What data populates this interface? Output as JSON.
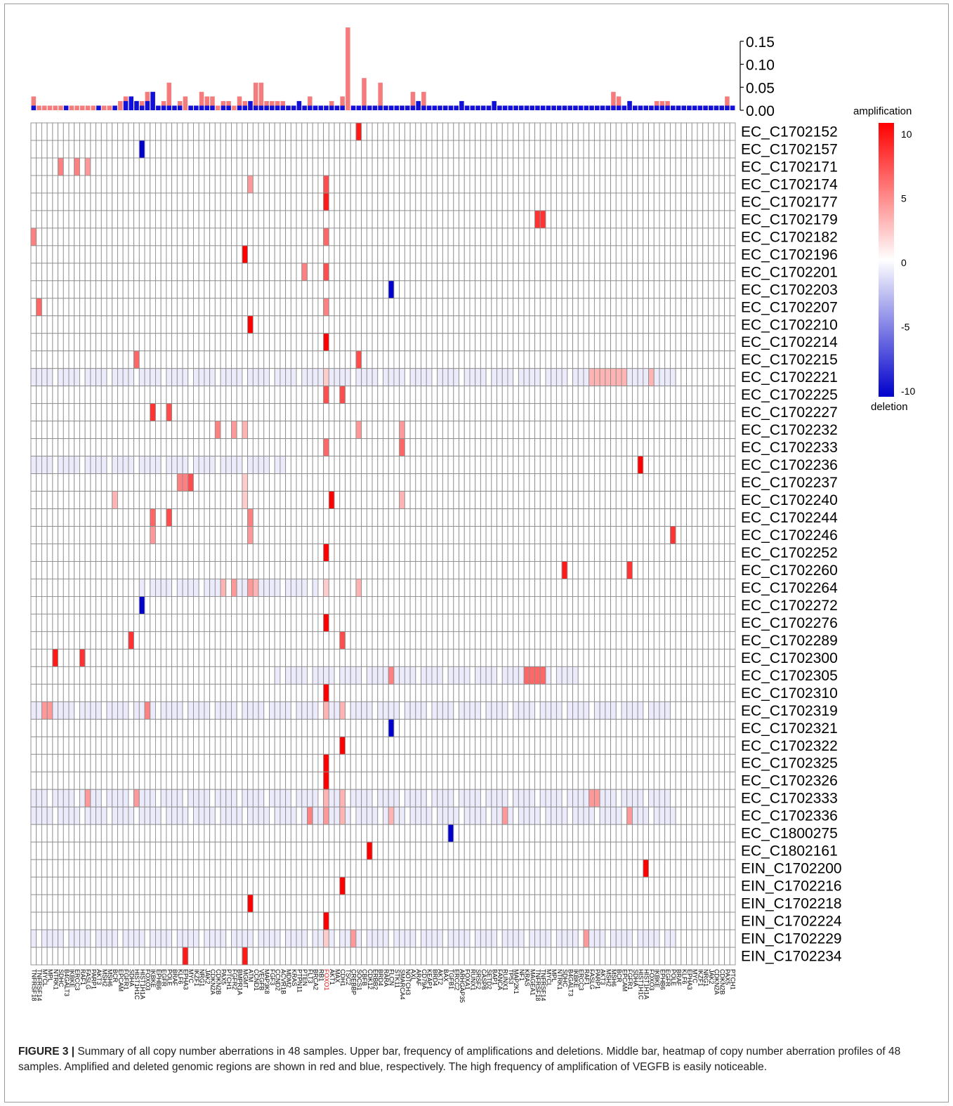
{
  "chart_data": {
    "type": "heatmap",
    "genes": [
      "TNFRSF18",
      "TNFRSF14",
      "MYCL",
      "MPL",
      "NTRK1",
      "SDHC",
      "B4GALT3",
      "IKBKE",
      "ERCC3",
      "RAF1",
      "FASLG",
      "PARP1",
      "AKT3",
      "MSH2",
      "MSH6",
      "BCR",
      "EPCAM",
      "FGFR1",
      "SDHA",
      "HIST1H1C",
      "HIST1H1A",
      "FOXO3",
      "IKBKE",
      "EPHB6",
      "EGFR",
      "POLE",
      "BRAF",
      "KLF6",
      "EPHA3",
      "MYC",
      "IKZF1",
      "NRG1",
      "JAK2",
      "CDKN2A",
      "CDKN2B",
      "PAX5",
      "PTCH1",
      "FGFR2",
      "BMPR1A",
      "MGMT",
      "ATM",
      "CCND1",
      "VEGFB",
      "MAP3K8",
      "FGF3",
      "CCND2",
      "ACVR1B",
      "MDM2",
      "KRAS",
      "PTPN11",
      "PTEN",
      "FLT3",
      "BRCA2",
      "RB1",
      "FOXO1",
      "AKT1",
      "MAX",
      "CDH1",
      "TSC2",
      "CREBBP",
      "SOCS1",
      "CBFB",
      "CDK12",
      "ERBB2",
      "BRD4",
      "RARA",
      "FLCN",
      "STK11",
      "SMARCA4",
      "NOTCH3",
      "AXL",
      "ARAF",
      "CD79A",
      "KEAP1",
      "BRD4",
      "AKT2",
      "BAX",
      "TGFB1",
      "ERCC2",
      "ARHGAP35",
      "FOXA1",
      "RUNX1",
      "SRSF2",
      "CASP8",
      "SETD2",
      "BAP1",
      "FANCA",
      "RUNX1",
      "TP53",
      "MAP2K1",
      "NF1",
      "KRAS",
      "MAGEA1"
    ],
    "xtick_labels": [
      "TNFRSF18",
      "TNFRSF14",
      "MYCL",
      "MPL",
      "NTRK1",
      "SDHC",
      "B4GALT3",
      "IKBKE",
      "ERCC3",
      "RAF1",
      "FASLG",
      "PARP1",
      "AKT3",
      "MSH2",
      "MSH6",
      "BCR",
      "EPCAM",
      "FGFR1",
      "SDHA",
      "HIST1H1C",
      "HIST1H1A",
      "FOXO3",
      "IKBKE",
      "EPHB6",
      "EGFR",
      "POLE",
      "BRAF",
      "KLF6",
      "EPHA3",
      "MYC",
      "IKZF1",
      "NRG1",
      "JAK2",
      "CDKN2A",
      "CDKN2B",
      "PAX5",
      "PTCH1",
      "FGFR2",
      "BMPR1A",
      "MGMT",
      "ATM",
      "CCND1",
      "VEGFB",
      "MAP3K8",
      "FGF3",
      "CCND2",
      "ACVR1B",
      "MDM2",
      "KRAS",
      "PTPN11",
      "PTEN",
      "FLT3",
      "BRCA2",
      "RB1",
      "FOXO1",
      "AKT1",
      "MAX",
      "CDH1",
      "TSC2",
      "CREBBP",
      "SOCS1",
      "CBFB",
      "CDK12",
      "ERBB2",
      "BRD4",
      "RARA",
      "FLCN",
      "STK11",
      "SMARCA4",
      "NOTCH3",
      "AXL",
      "ARAF",
      "CD79A",
      "KEAP1",
      "BRD4",
      "AKT2",
      "BAX",
      "TGFB1",
      "ERCC2",
      "ARHGAP35",
      "FOXA1",
      "RUNX1",
      "SRSF2",
      "CASP8",
      "SETD2",
      "BAP1",
      "FANCA",
      "RUNX1",
      "TP53",
      "MAP2K1",
      "NF1",
      "KRAS",
      "MAGEA1"
    ],
    "highlight_gene": "VEGFB",
    "highlight_index": 54,
    "samples": [
      "EC_C1702152",
      "EC_C1702157",
      "EC_C1702171",
      "EC_C1702174",
      "EC_C1702177",
      "EC_C1702179",
      "EC_C1702182",
      "EC_C1702196",
      "EC_C1702201",
      "EC_C1702203",
      "EC_C1702207",
      "EC_C1702210",
      "EC_C1702214",
      "EC_C1702215",
      "EC_C1702221",
      "EC_C1702225",
      "EC_C1702227",
      "EC_C1702232",
      "EC_C1702233",
      "EC_C1702236",
      "EC_C1702237",
      "EC_C1702240",
      "EC_C1702244",
      "EC_C1702246",
      "EC_C1702252",
      "EC_C1702260",
      "EC_C1702264",
      "EC_C1702272",
      "EC_C1702276",
      "EC_C1702289",
      "EC_C1702300",
      "EC_C1702305",
      "EC_C1702310",
      "EC_C1702319",
      "EC_C1702321",
      "EC_C1702322",
      "EC_C1702325",
      "EC_C1702326",
      "EC_C1702333",
      "EC_C1702336",
      "EC_C1800275",
      "EC_C1802161",
      "EIN_C1702200",
      "EIN_C1702216",
      "EIN_C1702218",
      "EIN_C1702224",
      "EIN_C1702229",
      "EIN_C1702234"
    ],
    "cells": [
      [
        0,
        60,
        9
      ],
      [
        1,
        20,
        -10
      ],
      [
        2,
        5,
        5
      ],
      [
        2,
        8,
        5
      ],
      [
        2,
        10,
        4
      ],
      [
        3,
        40,
        4
      ],
      [
        3,
        54,
        7
      ],
      [
        4,
        54,
        9
      ],
      [
        5,
        93,
        8
      ],
      [
        5,
        94,
        8
      ],
      [
        6,
        0,
        5
      ],
      [
        6,
        54,
        6
      ],
      [
        7,
        39,
        10
      ],
      [
        8,
        50,
        5
      ],
      [
        8,
        54,
        7
      ],
      [
        9,
        66,
        -10
      ],
      [
        10,
        1,
        6
      ],
      [
        10,
        54,
        5
      ],
      [
        11,
        40,
        10
      ],
      [
        12,
        54,
        10
      ],
      [
        13,
        19,
        6
      ],
      [
        13,
        60,
        7
      ],
      [
        14,
        54,
        2
      ],
      [
        14,
        103,
        3
      ],
      [
        14,
        104,
        3
      ],
      [
        14,
        105,
        3
      ],
      [
        14,
        106,
        3
      ],
      [
        14,
        107,
        3
      ],
      [
        14,
        108,
        3
      ],
      [
        14,
        109,
        3
      ],
      [
        14,
        114,
        3
      ],
      [
        15,
        54,
        7
      ],
      [
        15,
        57,
        7
      ],
      [
        16,
        22,
        8
      ],
      [
        16,
        25,
        7
      ],
      [
        17,
        34,
        5
      ],
      [
        17,
        37,
        4
      ],
      [
        17,
        39,
        3
      ],
      [
        17,
        60,
        4
      ],
      [
        17,
        68,
        4
      ],
      [
        18,
        54,
        6
      ],
      [
        18,
        68,
        6
      ],
      [
        19,
        112,
        10
      ],
      [
        20,
        27,
        5
      ],
      [
        20,
        28,
        5
      ],
      [
        20,
        29,
        7
      ],
      [
        20,
        39,
        2
      ],
      [
        21,
        15,
        3
      ],
      [
        21,
        39,
        2
      ],
      [
        21,
        55,
        10
      ],
      [
        21,
        68,
        3
      ],
      [
        22,
        22,
        6
      ],
      [
        22,
        25,
        7
      ],
      [
        22,
        40,
        5
      ],
      [
        23,
        22,
        4
      ],
      [
        23,
        40,
        4
      ],
      [
        23,
        118,
        8
      ],
      [
        24,
        54,
        10
      ],
      [
        25,
        98,
        9
      ],
      [
        25,
        110,
        8
      ],
      [
        26,
        35,
        3
      ],
      [
        26,
        37,
        4
      ],
      [
        26,
        40,
        4
      ],
      [
        26,
        41,
        3
      ],
      [
        26,
        54,
        2
      ],
      [
        26,
        60,
        3
      ],
      [
        27,
        20,
        -10
      ],
      [
        28,
        54,
        10
      ],
      [
        29,
        18,
        8
      ],
      [
        29,
        57,
        7
      ],
      [
        30,
        4,
        9
      ],
      [
        30,
        9,
        8
      ],
      [
        31,
        66,
        5
      ],
      [
        31,
        91,
        6
      ],
      [
        31,
        92,
        6
      ],
      [
        31,
        93,
        6
      ],
      [
        31,
        94,
        6
      ],
      [
        32,
        54,
        10
      ],
      [
        33,
        2,
        4
      ],
      [
        33,
        3,
        4
      ],
      [
        33,
        21,
        5
      ],
      [
        33,
        54,
        3
      ],
      [
        33,
        57,
        3
      ],
      [
        34,
        66,
        -10
      ],
      [
        35,
        57,
        10
      ],
      [
        36,
        54,
        10
      ],
      [
        37,
        54,
        10
      ],
      [
        38,
        10,
        4
      ],
      [
        38,
        19,
        4
      ],
      [
        38,
        54,
        3
      ],
      [
        38,
        57,
        3
      ],
      [
        38,
        103,
        4
      ],
      [
        38,
        104,
        4
      ],
      [
        39,
        51,
        5
      ],
      [
        39,
        54,
        4
      ],
      [
        39,
        57,
        3
      ],
      [
        39,
        66,
        3
      ],
      [
        39,
        87,
        4
      ],
      [
        39,
        110,
        4
      ],
      [
        40,
        77,
        -10
      ],
      [
        41,
        62,
        10
      ],
      [
        42,
        113,
        10
      ],
      [
        43,
        57,
        10
      ],
      [
        44,
        40,
        10
      ],
      [
        45,
        54,
        10
      ],
      [
        46,
        54,
        2
      ],
      [
        46,
        59,
        4
      ],
      [
        46,
        102,
        4
      ],
      [
        47,
        28,
        9
      ],
      [
        47,
        39,
        9
      ]
    ],
    "tinted_rows": {
      "light_blue": [
        14,
        19,
        26,
        31,
        33,
        38,
        39,
        46
      ],
      "light_blue_ranges": [
        [
          14,
          0,
          118
        ],
        [
          19,
          0,
          46
        ],
        [
          31,
          45,
          100
        ],
        [
          26,
          20,
          52
        ],
        [
          33,
          0,
          118
        ],
        [
          38,
          0,
          118
        ],
        [
          39,
          0,
          118
        ],
        [
          46,
          0,
          118
        ]
      ]
    },
    "amplification_freq": [
      0.03,
      0.01,
      0.01,
      0.01,
      0.01,
      0.01,
      0.01,
      0.01,
      0.01,
      0.01,
      0.01,
      0.01,
      0.01,
      0.01,
      0.01,
      0.01,
      0.02,
      0.03,
      0.01,
      0.02,
      0.02,
      0.04,
      0.04,
      0.01,
      0.02,
      0.06,
      0.01,
      0.02,
      0.03,
      0.01,
      0.01,
      0.04,
      0.03,
      0.03,
      0.01,
      0.02,
      0.02,
      0.01,
      0.03,
      0.02,
      0.01,
      0.06,
      0.06,
      0.02,
      0.02,
      0.02,
      0.02,
      0.01,
      0.01,
      0.01,
      0.01,
      0.03,
      0.01,
      0.01,
      0.01,
      0.02,
      0.01,
      0.03,
      0.18,
      0.01,
      0.01,
      0.07,
      0.01,
      0.01,
      0.06,
      0.01,
      0.01,
      0.01,
      0.01,
      0.01,
      0.04,
      0.01,
      0.04,
      0.01,
      0.01,
      0.01,
      0.01,
      0.01,
      0.01,
      0.01,
      0.01,
      0.01,
      0.01,
      0.01,
      0.01,
      0.01,
      0.01,
      0.01,
      0.01,
      0.01,
      0.01,
      0.01,
      0.01,
      0.01,
      0.01,
      0.01,
      0.01,
      0.01,
      0.01,
      0.01,
      0.01,
      0.01,
      0.01,
      0.01,
      0.01,
      0.01,
      0.01,
      0.04,
      0.03,
      0.01,
      0.02,
      0.01,
      0.01,
      0.01,
      0.01,
      0.02,
      0.02,
      0.02,
      0.01,
      0.01,
      0.01,
      0.01,
      0.01,
      0.01,
      0.01,
      0.01,
      0.01,
      0.01,
      0.03,
      0.01
    ],
    "deletion_freq": [
      0.01,
      0,
      0,
      0,
      0,
      0,
      0.01,
      0,
      0,
      0,
      0,
      0,
      0.01,
      0,
      0,
      0.01,
      0,
      0.02,
      0.03,
      0.02,
      0.01,
      0.02,
      0.04,
      0.01,
      0.01,
      0.01,
      0.01,
      0.01,
      0,
      0.01,
      0.01,
      0.01,
      0.01,
      0.01,
      0,
      0.01,
      0.01,
      0,
      0.01,
      0.01,
      0.02,
      0.01,
      0.01,
      0.01,
      0.01,
      0.01,
      0.01,
      0.01,
      0.01,
      0.02,
      0.01,
      0.01,
      0.01,
      0.01,
      0.01,
      0.01,
      0.01,
      0.01,
      0,
      0.01,
      0.01,
      0.01,
      0.01,
      0.01,
      0.01,
      0.01,
      0.01,
      0.01,
      0.01,
      0.01,
      0.01,
      0.02,
      0.01,
      0.01,
      0.01,
      0.01,
      0.01,
      0.01,
      0.01,
      0.02,
      0.01,
      0.01,
      0.01,
      0.01,
      0.01,
      0.02,
      0.01,
      0.01,
      0.01,
      0.01,
      0.01,
      0.01,
      0.01,
      0.01,
      0.01,
      0.01,
      0.01,
      0.01,
      0.01,
      0.01,
      0.01,
      0.01,
      0.01,
      0.01,
      0.01,
      0.01,
      0.01,
      0.01,
      0.01,
      0.01,
      0.02,
      0.01,
      0.01,
      0.01,
      0.01,
      0.01,
      0.01,
      0.01,
      0.01,
      0.01,
      0.01,
      0.01,
      0.01,
      0.01,
      0.01,
      0.01,
      0.01,
      0.01,
      0.01,
      0.01,
      0.01
    ],
    "bar_yticks": [
      "0.00",
      "0.05",
      "0.10",
      "0.15"
    ],
    "bar_ytick_values": [
      0,
      0.05,
      0.1,
      0.15
    ],
    "bar_ymax": 0.2,
    "legend": {
      "top_label": "amplification",
      "bottom_label": "deletion",
      "ticks": [
        "10",
        "5",
        "0",
        "-5",
        "-10"
      ],
      "tick_values": [
        10,
        5,
        0,
        -5,
        -10
      ],
      "amp_color": "#ff0000",
      "del_color": "#0000cc"
    },
    "vmin": -10,
    "vmax": 10
  },
  "caption": {
    "label": "FIGURE 3 |",
    "text": " Summary of all copy number aberrations in 48 samples. Upper bar, frequency of amplifications and deletions. Middle bar, heatmap of copy number aberration profiles of 48 samples. Amplified and deleted genomic regions are shown in red and blue, respectively. The high frequency of amplification of VEGFB is easily noticeable."
  }
}
